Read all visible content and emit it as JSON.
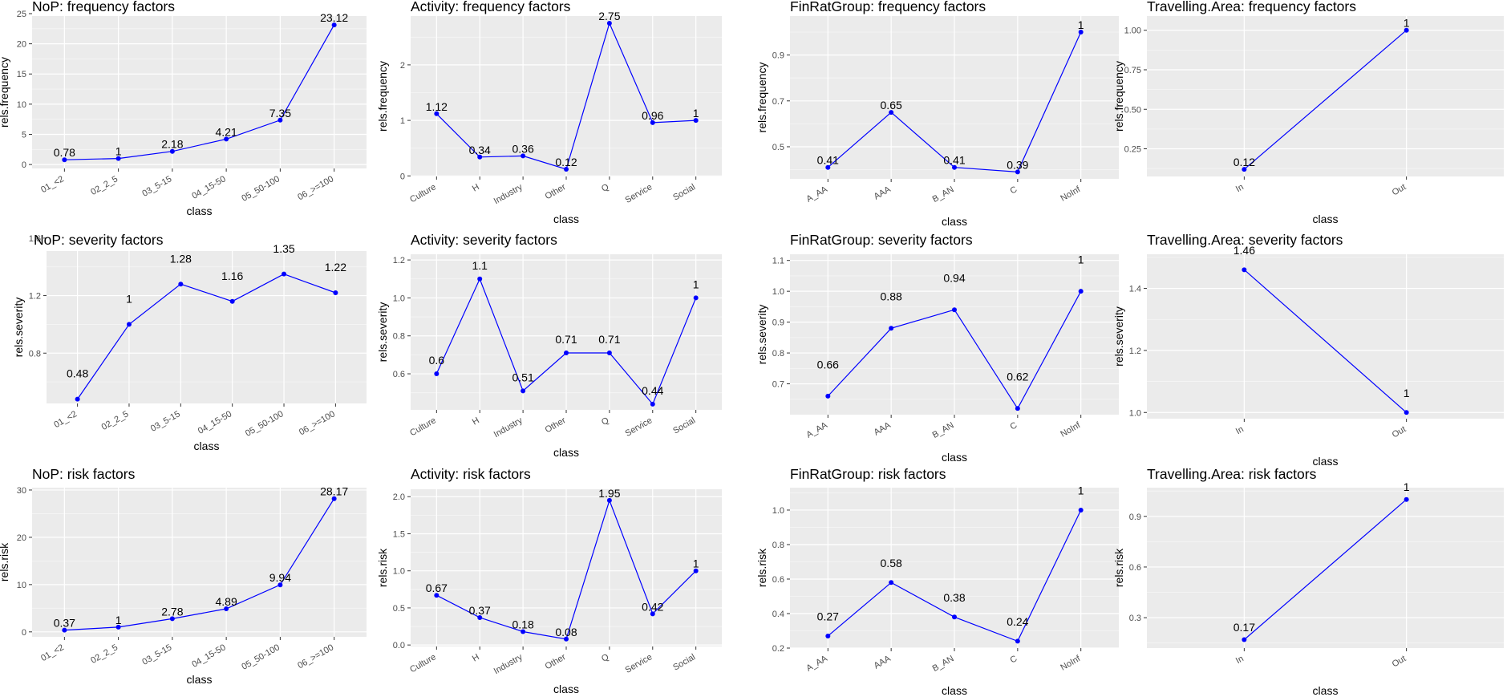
{
  "colors": {
    "series": "#0000ff",
    "panel_background": "#ebebeb",
    "grid": "#ffffff"
  },
  "chart_data": [
    {
      "type": "line",
      "title": "NoP: frequency factors",
      "xlabel": "class",
      "ylabel": "rels.frequency",
      "categories": [
        "01_<2",
        "02_2_5",
        "03_5-15",
        "04_15-50",
        "05_50-100",
        "06_>=100"
      ],
      "values": [
        0.78,
        1,
        2.18,
        4.21,
        7.35,
        23.12
      ],
      "labels": [
        "0.78",
        "1",
        "2.18",
        "4.21",
        "7.35",
        "23.12"
      ],
      "label_offsets": [
        0,
        0,
        0,
        0,
        0,
        0
      ],
      "ylim": [
        -0.65,
        24.6
      ],
      "yticks": [
        0,
        5,
        10,
        15,
        20,
        25
      ]
    },
    {
      "type": "line",
      "title": "Activity: frequency factors",
      "xlabel": "class",
      "ylabel": "rels.frequency",
      "categories": [
        "Culture",
        "H",
        "Industry",
        "Other",
        "Q",
        "Service",
        "Social"
      ],
      "values": [
        1.12,
        0.34,
        0.36,
        0.12,
        2.75,
        0.96,
        1
      ],
      "labels": [
        "1.12",
        "0.34",
        "0.36",
        "0.12",
        "2.75",
        "0.96",
        "1"
      ],
      "label_offsets": [
        0,
        0,
        0,
        0,
        0,
        0,
        0
      ],
      "ylim": [
        -0.01,
        2.88
      ],
      "yticks": [
        0,
        1,
        2
      ]
    },
    {
      "type": "line",
      "title": "FinRatGroup: frequency factors",
      "xlabel": "class",
      "ylabel": "rels.frequency",
      "categories": [
        "A_AA",
        "AAA",
        "B_AN",
        "C",
        "NoInf"
      ],
      "values": [
        0.41,
        0.65,
        0.41,
        0.39,
        1
      ],
      "labels": [
        "0.41",
        "0.65",
        "0.41",
        "0.39",
        "1"
      ],
      "label_offsets": [
        0,
        0,
        0,
        0,
        0
      ],
      "ylim": [
        0.36,
        1.07
      ],
      "yticks": [
        0.5,
        0.7,
        0.9
      ]
    },
    {
      "type": "line",
      "title": "Travelling.Area: frequency factors",
      "xlabel": "class",
      "ylabel": "rels.frequency",
      "categories": [
        "In",
        "Out"
      ],
      "values": [
        0.12,
        1
      ],
      "labels": [
        "0.12",
        "1"
      ],
      "label_offsets": [
        0,
        0
      ],
      "ylim": [
        0.075,
        1.09
      ],
      "yticks": [
        0.25,
        0.5,
        0.75,
        1
      ],
      "ytick_labels": [
        "0.25",
        "0.50",
        "0.75",
        "1.00"
      ]
    },
    {
      "type": "line",
      "title": "NoP: severity factors",
      "xlabel": "class",
      "ylabel": "rels.severity",
      "categories": [
        "01_<2",
        "02_2_5",
        "03_5-15",
        "04_15-50",
        "05_50-100",
        "06_>=100"
      ],
      "values": [
        0.48,
        1,
        1.28,
        1.16,
        1.35,
        1.22
      ],
      "labels": [
        "0.48",
        "1",
        "1.28",
        "1.16",
        "1.35",
        "1.22"
      ],
      "label_offsets": [
        0.15,
        0.15,
        0.15,
        0.15,
        0.15,
        0.15
      ],
      "ylim": [
        0.45,
        1.51
      ],
      "yticks": [
        0.8,
        1.2,
        1.6
      ]
    },
    {
      "type": "line",
      "title": "Activity: severity factors",
      "xlabel": "class",
      "ylabel": "rels.severity",
      "categories": [
        "Culture",
        "H",
        "Industry",
        "Other",
        "Q",
        "Service",
        "Social"
      ],
      "values": [
        0.6,
        1.1,
        0.51,
        0.71,
        0.71,
        0.44,
        1
      ],
      "labels": [
        "0.6",
        "1.1",
        "0.51",
        "0.71",
        "0.71",
        "0.44",
        "1"
      ],
      "label_offsets": [
        0.05,
        0.05,
        0.05,
        0.05,
        0.05,
        0.05,
        0.05
      ],
      "ylim": [
        0.41,
        1.23
      ],
      "yticks": [
        0.6,
        0.8,
        1,
        1.2
      ],
      "ytick_labels": [
        "0.6",
        "0.8",
        "1.0",
        "1.2"
      ]
    },
    {
      "type": "line",
      "title": "FinRatGroup: severity factors",
      "xlabel": "class",
      "ylabel": "rels.severity",
      "categories": [
        "A_AA",
        "AAA",
        "B_AN",
        "C",
        "NoInf"
      ],
      "values": [
        0.66,
        0.88,
        0.94,
        0.62,
        1
      ],
      "labels": [
        "0.66",
        "0.88",
        "0.94",
        "0.62",
        "1"
      ],
      "label_offsets": [
        0.09,
        0.09,
        0.09,
        0.09,
        0.09
      ],
      "ylim": [
        0.6,
        1.12
      ],
      "yticks": [
        0.7,
        0.8,
        0.9,
        1,
        1.1
      ],
      "ytick_labels": [
        "0.7",
        "0.8",
        "0.9",
        "1.0",
        "1.1"
      ]
    },
    {
      "type": "line",
      "title": "Travelling.Area: severity factors",
      "xlabel": "class",
      "ylabel": "rels.severity",
      "categories": [
        "In",
        "Out"
      ],
      "values": [
        1.46,
        1
      ],
      "labels": [
        "1.46",
        "1"
      ],
      "label_offsets": [
        0.05,
        0.05
      ],
      "ylim": [
        0.98,
        1.51
      ],
      "yticks": [
        1,
        1.2,
        1.4
      ],
      "ytick_labels": [
        "1.0",
        "1.2",
        "1.4"
      ]
    },
    {
      "type": "line",
      "title": "NoP: risk factors",
      "xlabel": "class",
      "ylabel": "rels.risk",
      "categories": [
        "01_<2",
        "02_2_5",
        "03_5-15",
        "04_15-50",
        "05_50-100",
        "06_>=100"
      ],
      "values": [
        0.37,
        1,
        2.78,
        4.89,
        9.94,
        28.17
      ],
      "labels": [
        "0.37",
        "1",
        "2.78",
        "4.89",
        "9.94",
        "28.17"
      ],
      "label_offsets": [
        0,
        0,
        0,
        0,
        0,
        0
      ],
      "ylim": [
        -1.05,
        30.5
      ],
      "yticks": [
        0,
        10,
        20,
        30
      ]
    },
    {
      "type": "line",
      "title": "Activity: risk factors",
      "xlabel": "class",
      "ylabel": "rels.risk",
      "categories": [
        "Culture",
        "H",
        "Industry",
        "Other",
        "Q",
        "Service",
        "Social"
      ],
      "values": [
        0.67,
        0.37,
        0.18,
        0.08,
        1.95,
        0.42,
        1
      ],
      "labels": [
        "0.67",
        "0.37",
        "0.18",
        "0.08",
        "1.95",
        "0.42",
        "1"
      ],
      "label_offsets": [
        0,
        0,
        0,
        0,
        0,
        0,
        0
      ],
      "ylim": [
        -0.02,
        2.1
      ],
      "yticks": [
        0,
        0.5,
        1,
        1.5,
        2
      ],
      "ytick_labels": [
        "0.0",
        "0.5",
        "1.0",
        "1.5",
        "2.0"
      ]
    },
    {
      "type": "line",
      "title": "FinRatGroup: risk factors",
      "xlabel": "class",
      "ylabel": "rels.risk",
      "categories": [
        "A_AA",
        "AAA",
        "B_AN",
        "C",
        "NoInf"
      ],
      "values": [
        0.27,
        0.58,
        0.38,
        0.24,
        1
      ],
      "labels": [
        "0.27",
        "0.58",
        "0.38",
        "0.24",
        "1"
      ],
      "label_offsets": [
        0.09,
        0.09,
        0.09,
        0.09,
        0.09
      ],
      "ylim": [
        0.2,
        1.13
      ],
      "yticks": [
        0.2,
        0.4,
        0.6,
        0.8,
        1
      ],
      "ytick_labels": [
        "0.2",
        "0.4",
        "0.6",
        "0.8",
        "1.0"
      ]
    },
    {
      "type": "line",
      "title": "Travelling.Area: risk factors",
      "xlabel": "class",
      "ylabel": "rels.risk",
      "categories": [
        "In",
        "Out"
      ],
      "values": [
        0.17,
        1
      ],
      "labels": [
        "0.17",
        "1"
      ],
      "label_offsets": [
        0.05,
        0.05
      ],
      "ylim": [
        0.12,
        1.07
      ],
      "yticks": [
        0.3,
        0.6,
        0.9
      ]
    }
  ]
}
